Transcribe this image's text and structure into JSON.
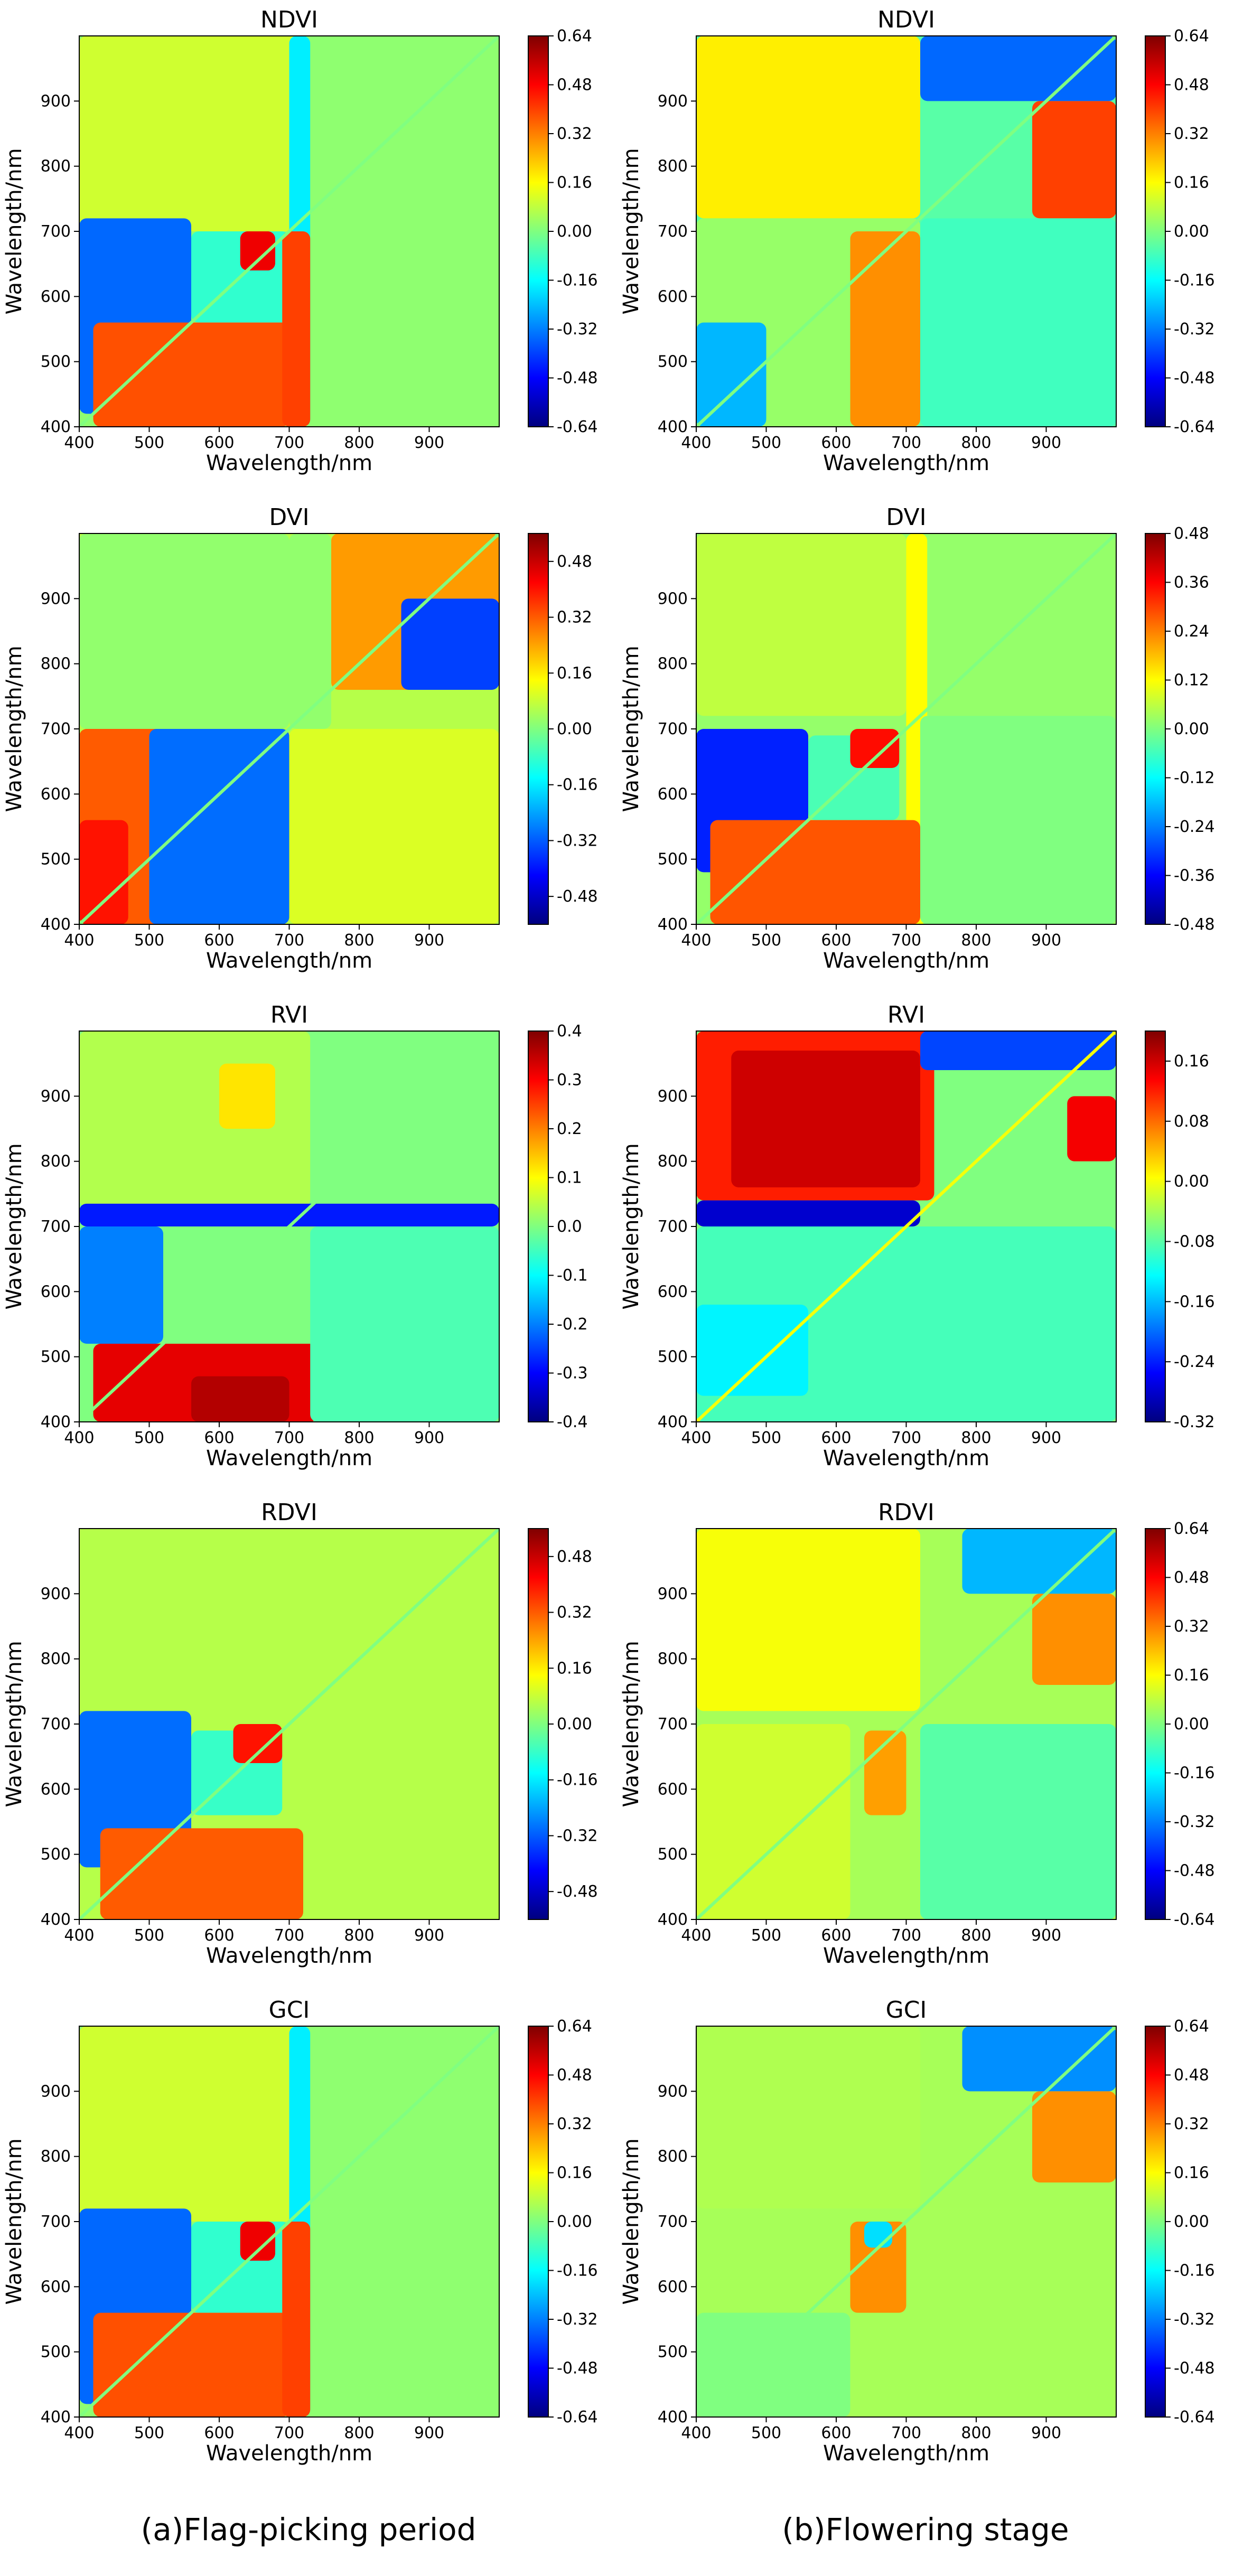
{
  "figure": {
    "captions": [
      "(a)Flag-picking period",
      "(b)Flowering stage"
    ]
  },
  "chart_data": [
    {
      "type": "heatmap",
      "title": "NDVI",
      "xlabel": "Wavelength/nm",
      "ylabel": "Wavelength/nm",
      "xlim": [
        400,
        1000
      ],
      "ylim": [
        400,
        1000
      ],
      "x_ticks": [
        "400",
        "500",
        "600",
        "700",
        "800",
        "900"
      ],
      "y_ticks": [
        "400",
        "500",
        "600",
        "700",
        "800",
        "900"
      ],
      "colorbar_ticks": [
        "-0.64",
        "-0.48",
        "-0.32",
        "-0.16",
        "0.00",
        "0.16",
        "0.32",
        "0.48",
        "0.64"
      ],
      "vmin": -0.64,
      "vmax": 0.64,
      "colormap": "jet",
      "background": 0.02,
      "regions": [
        [
          400,
          730,
          700,
          1000,
          0.1
        ],
        [
          760,
          1000,
          730,
          1000,
          0.02
        ],
        [
          700,
          730,
          400,
          1000,
          -0.18
        ],
        [
          400,
          560,
          420,
          720,
          -0.35
        ],
        [
          560,
          700,
          560,
          700,
          -0.1
        ],
        [
          630,
          680,
          640,
          700,
          0.5
        ],
        [
          420,
          700,
          400,
          560,
          0.38
        ],
        [
          690,
          730,
          400,
          700,
          0.4
        ]
      ]
    },
    {
      "type": "heatmap",
      "title": "NDVI",
      "xlabel": "Wavelength/nm",
      "ylabel": "Wavelength/nm",
      "xlim": [
        400,
        1000
      ],
      "ylim": [
        400,
        1000
      ],
      "x_ticks": [
        "400",
        "500",
        "600",
        "700",
        "800",
        "900"
      ],
      "y_ticks": [
        "400",
        "500",
        "600",
        "700",
        "800",
        "900"
      ],
      "colorbar_ticks": [
        "-0.64",
        "-0.48",
        "-0.32",
        "-0.16",
        "0.00",
        "0.16",
        "0.32",
        "0.48",
        "0.64"
      ],
      "vmin": -0.64,
      "vmax": 0.64,
      "colormap": "jet",
      "background": -0.05,
      "regions": [
        [
          400,
          720,
          720,
          1000,
          0.18
        ],
        [
          720,
          1000,
          900,
          1000,
          -0.35
        ],
        [
          880,
          1000,
          720,
          900,
          0.4
        ],
        [
          720,
          1000,
          400,
          720,
          -0.08
        ],
        [
          400,
          720,
          400,
          720,
          0.03
        ],
        [
          620,
          720,
          400,
          700,
          0.3
        ],
        [
          400,
          500,
          400,
          560,
          -0.25
        ]
      ]
    },
    {
      "type": "heatmap",
      "title": "DVI",
      "xlabel": "Wavelength/nm",
      "ylabel": "Wavelength/nm",
      "xlim": [
        400,
        1000
      ],
      "ylim": [
        400,
        1000
      ],
      "x_ticks": [
        "400",
        "500",
        "600",
        "700",
        "800",
        "900"
      ],
      "y_ticks": [
        "400",
        "500",
        "600",
        "700",
        "800",
        "900"
      ],
      "colorbar_ticks": [
        "-0.48",
        "-0.32",
        "-0.16",
        "0.00",
        "0.16",
        "0.32",
        "0.48"
      ],
      "vmin": -0.56,
      "vmax": 0.56,
      "colormap": "jet",
      "background": 0.06,
      "regions": [
        [
          400,
          700,
          700,
          1000,
          0.02
        ],
        [
          400,
          700,
          400,
          700,
          0.32
        ],
        [
          400,
          470,
          400,
          560,
          0.4
        ],
        [
          500,
          700,
          400,
          700,
          -0.3
        ],
        [
          760,
          1000,
          760,
          1000,
          0.25
        ],
        [
          860,
          1000,
          760,
          900,
          -0.35
        ],
        [
          700,
          1000,
          400,
          700,
          0.1
        ],
        [
          700,
          760,
          700,
          1000,
          0.02
        ]
      ]
    },
    {
      "type": "heatmap",
      "title": "DVI",
      "xlabel": "Wavelength/nm",
      "ylabel": "Wavelength/nm",
      "xlim": [
        400,
        1000
      ],
      "ylim": [
        400,
        1000
      ],
      "x_ticks": [
        "400",
        "500",
        "600",
        "700",
        "800",
        "900"
      ],
      "y_ticks": [
        "400",
        "500",
        "600",
        "700",
        "800",
        "900"
      ],
      "colorbar_ticks": [
        "-0.48",
        "-0.36",
        "-0.24",
        "-0.12",
        "0.00",
        "0.12",
        "0.24",
        "0.36",
        "0.48"
      ],
      "vmin": -0.48,
      "vmax": 0.48,
      "colormap": "jet",
      "background": 0.02,
      "regions": [
        [
          400,
          700,
          720,
          1000,
          0.06
        ],
        [
          700,
          730,
          400,
          1000,
          0.12
        ],
        [
          400,
          560,
          480,
          700,
          -0.33
        ],
        [
          560,
          690,
          560,
          690,
          -0.05
        ],
        [
          620,
          690,
          640,
          700,
          0.35
        ],
        [
          420,
          720,
          400,
          560,
          0.28
        ],
        [
          720,
          1000,
          400,
          720,
          0.0
        ]
      ]
    },
    {
      "type": "heatmap",
      "title": "RVI",
      "xlabel": "Wavelength/nm",
      "ylabel": "Wavelength/nm",
      "xlim": [
        400,
        1000
      ],
      "ylim": [
        400,
        1000
      ],
      "x_ticks": [
        "400",
        "500",
        "600",
        "700",
        "800",
        "900"
      ],
      "y_ticks": [
        "400",
        "500",
        "600",
        "700",
        "800",
        "900"
      ],
      "colorbar_ticks": [
        "-0.4",
        "-0.3",
        "-0.2",
        "-0.1",
        "0.0",
        "0.1",
        "0.2",
        "0.3",
        "0.4"
      ],
      "vmin": -0.4,
      "vmax": 0.4,
      "colormap": "jet",
      "background": 0.0,
      "regions": [
        [
          400,
          730,
          730,
          1000,
          0.04
        ],
        [
          400,
          1000,
          700,
          735,
          -0.28
        ],
        [
          400,
          520,
          520,
          700,
          -0.2
        ],
        [
          420,
          740,
          400,
          520,
          0.32
        ],
        [
          560,
          700,
          400,
          470,
          0.36
        ],
        [
          600,
          680,
          850,
          950,
          0.12
        ],
        [
          730,
          1000,
          400,
          700,
          -0.04
        ]
      ]
    },
    {
      "type": "heatmap",
      "title": "RVI",
      "xlabel": "Wavelength/nm",
      "ylabel": "Wavelength/nm",
      "xlim": [
        400,
        1000
      ],
      "ylim": [
        400,
        1000
      ],
      "x_ticks": [
        "400",
        "500",
        "600",
        "700",
        "800",
        "900"
      ],
      "y_ticks": [
        "400",
        "500",
        "600",
        "700",
        "800",
        "900"
      ],
      "colorbar_ticks": [
        "-0.32",
        "-0.24",
        "-0.16",
        "-0.08",
        "0.00",
        "0.08",
        "0.16"
      ],
      "vmin": -0.32,
      "vmax": 0.2,
      "colormap": "jet",
      "background": -0.06,
      "regions": [
        [
          400,
          740,
          740,
          1000,
          0.12
        ],
        [
          450,
          720,
          760,
          970,
          0.16
        ],
        [
          720,
          1000,
          940,
          1000,
          -0.22
        ],
        [
          930,
          1000,
          800,
          900,
          0.14
        ],
        [
          400,
          720,
          700,
          740,
          -0.28
        ],
        [
          400,
          1000,
          400,
          700,
          -0.09
        ],
        [
          400,
          560,
          440,
          580,
          -0.13
        ]
      ]
    },
    {
      "type": "heatmap",
      "title": "RDVI",
      "xlabel": "Wavelength/nm",
      "ylabel": "Wavelength/nm",
      "xlim": [
        400,
        1000
      ],
      "ylim": [
        400,
        1000
      ],
      "x_ticks": [
        "400",
        "500",
        "600",
        "700",
        "800",
        "900"
      ],
      "y_ticks": [
        "400",
        "500",
        "600",
        "700",
        "800",
        "900"
      ],
      "colorbar_ticks": [
        "-0.48",
        "-0.32",
        "-0.16",
        "0.00",
        "0.16",
        "0.32",
        "0.48"
      ],
      "vmin": -0.56,
      "vmax": 0.56,
      "colormap": "jet",
      "background": 0.06,
      "regions": [
        [
          400,
          720,
          720,
          1000,
          0.06
        ],
        [
          400,
          560,
          480,
          720,
          -0.3
        ],
        [
          560,
          690,
          560,
          690,
          -0.08
        ],
        [
          620,
          690,
          640,
          700,
          0.4
        ],
        [
          430,
          720,
          400,
          540,
          0.32
        ],
        [
          720,
          1000,
          400,
          720,
          0.06
        ]
      ]
    },
    {
      "type": "heatmap",
      "title": "RDVI",
      "xlabel": "Wavelength/nm",
      "ylabel": "Wavelength/nm",
      "xlim": [
        400,
        1000
      ],
      "ylim": [
        400,
        1000
      ],
      "x_ticks": [
        "400",
        "500",
        "600",
        "700",
        "800",
        "900"
      ],
      "y_ticks": [
        "400",
        "500",
        "600",
        "700",
        "800",
        "900"
      ],
      "colorbar_ticks": [
        "-0.64",
        "-0.48",
        "-0.32",
        "-0.16",
        "0.00",
        "0.16",
        "0.32",
        "0.48",
        "0.64"
      ],
      "vmin": -0.64,
      "vmax": 0.64,
      "colormap": "jet",
      "background": 0.05,
      "regions": [
        [
          400,
          720,
          720,
          1000,
          0.15
        ],
        [
          780,
          1000,
          900,
          1000,
          -0.25
        ],
        [
          880,
          1000,
          760,
          900,
          0.3
        ],
        [
          720,
          1000,
          400,
          700,
          -0.05
        ],
        [
          640,
          700,
          560,
          690,
          0.28
        ],
        [
          400,
          620,
          400,
          700,
          0.1
        ]
      ]
    },
    {
      "type": "heatmap",
      "title": "GCI",
      "xlabel": "Wavelength/nm",
      "ylabel": "Wavelength/nm",
      "xlim": [
        400,
        1000
      ],
      "ylim": [
        400,
        1000
      ],
      "x_ticks": [
        "400",
        "500",
        "600",
        "700",
        "800",
        "900"
      ],
      "y_ticks": [
        "400",
        "500",
        "600",
        "700",
        "800",
        "900"
      ],
      "colorbar_ticks": [
        "-0.64",
        "-0.48",
        "-0.32",
        "-0.16",
        "0.00",
        "0.16",
        "0.32",
        "0.48",
        "0.64"
      ],
      "vmin": -0.64,
      "vmax": 0.64,
      "colormap": "jet",
      "background": 0.02,
      "regions": [
        [
          400,
          730,
          700,
          1000,
          0.1
        ],
        [
          760,
          1000,
          730,
          1000,
          0.02
        ],
        [
          700,
          730,
          400,
          1000,
          -0.18
        ],
        [
          400,
          560,
          420,
          720,
          -0.35
        ],
        [
          560,
          700,
          560,
          700,
          -0.1
        ],
        [
          630,
          680,
          640,
          700,
          0.5
        ],
        [
          420,
          700,
          400,
          560,
          0.38
        ],
        [
          690,
          730,
          400,
          700,
          0.4
        ]
      ]
    },
    {
      "type": "heatmap",
      "title": "GCI",
      "xlabel": "Wavelength/nm",
      "ylabel": "Wavelength/nm",
      "xlim": [
        400,
        1000
      ],
      "ylim": [
        400,
        1000
      ],
      "x_ticks": [
        "400",
        "500",
        "600",
        "700",
        "800",
        "900"
      ],
      "y_ticks": [
        "400",
        "500",
        "600",
        "700",
        "800",
        "900"
      ],
      "colorbar_ticks": [
        "-0.64",
        "-0.48",
        "-0.32",
        "-0.16",
        "0.00",
        "0.16",
        "0.32",
        "0.48",
        "0.64"
      ],
      "vmin": -0.64,
      "vmax": 0.64,
      "colormap": "jet",
      "background": 0.05,
      "regions": [
        [
          780,
          1000,
          900,
          1000,
          -0.3
        ],
        [
          880,
          1000,
          760,
          900,
          0.3
        ],
        [
          400,
          720,
          720,
          1000,
          0.06
        ],
        [
          620,
          700,
          560,
          700,
          0.3
        ],
        [
          640,
          680,
          660,
          700,
          -0.2
        ],
        [
          400,
          620,
          400,
          560,
          0.0
        ]
      ]
    }
  ]
}
